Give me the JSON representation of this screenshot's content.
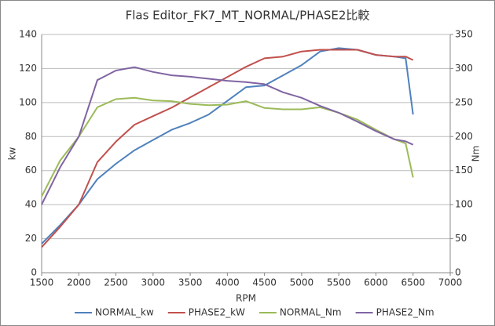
{
  "chart_data": {
    "type": "line",
    "title": "Flas Editor_FK7_MT_NORMAL/PHASE2比較",
    "x_label": "RPM",
    "y_label": "kw",
    "y2_label": "Nm",
    "x": [
      1500,
      1750,
      2000,
      2250,
      2500,
      2750,
      3000,
      3250,
      3500,
      3750,
      4000,
      4250,
      4500,
      4750,
      5000,
      5250,
      5500,
      5750,
      6000,
      6250,
      6400,
      6500
    ],
    "series": [
      {
        "name": "NORMAL_kw",
        "color": "#4f81bd",
        "values": [
          17,
          28,
          40,
          55,
          64,
          72,
          78,
          84,
          88,
          93,
          101,
          109,
          110,
          116,
          122,
          130,
          132,
          131,
          128,
          127,
          126,
          93
        ]
      },
      {
        "name": "PHASE2_kW",
        "color": "#c0504d",
        "values": [
          15,
          27,
          40,
          65,
          77,
          87,
          92,
          97,
          103,
          109,
          115,
          121,
          126,
          127,
          130,
          131,
          131,
          131,
          128,
          127,
          127,
          125
        ]
      },
      {
        "name": "NORMAL_Nm",
        "color": "#9bbb59",
        "axis": "y2",
        "values": [
          112,
          165,
          200,
          243,
          255,
          257,
          253,
          252,
          248,
          246,
          247,
          252,
          242,
          240,
          240,
          243,
          235,
          225,
          210,
          196,
          190,
          140
        ]
      },
      {
        "name": "PHASE2_Nm",
        "color": "#8064a2",
        "axis": "y2",
        "values": [
          100,
          155,
          200,
          283,
          297,
          302,
          295,
          290,
          288,
          285,
          282,
          280,
          277,
          265,
          257,
          245,
          235,
          222,
          208,
          196,
          193,
          188
        ]
      }
    ],
    "xlim": [
      1500,
      7000
    ],
    "xticks": [
      1500,
      2000,
      2500,
      3000,
      3500,
      4000,
      4500,
      5000,
      5500,
      6000,
      6500,
      7000
    ],
    "ylim": [
      0,
      140
    ],
    "yticks": [
      0,
      20,
      40,
      60,
      80,
      100,
      120,
      140
    ],
    "y2lim": [
      0,
      350
    ],
    "y2ticks": [
      0,
      50,
      100,
      150,
      200,
      250,
      300,
      350
    ],
    "grid": true,
    "legend": "bottom"
  }
}
